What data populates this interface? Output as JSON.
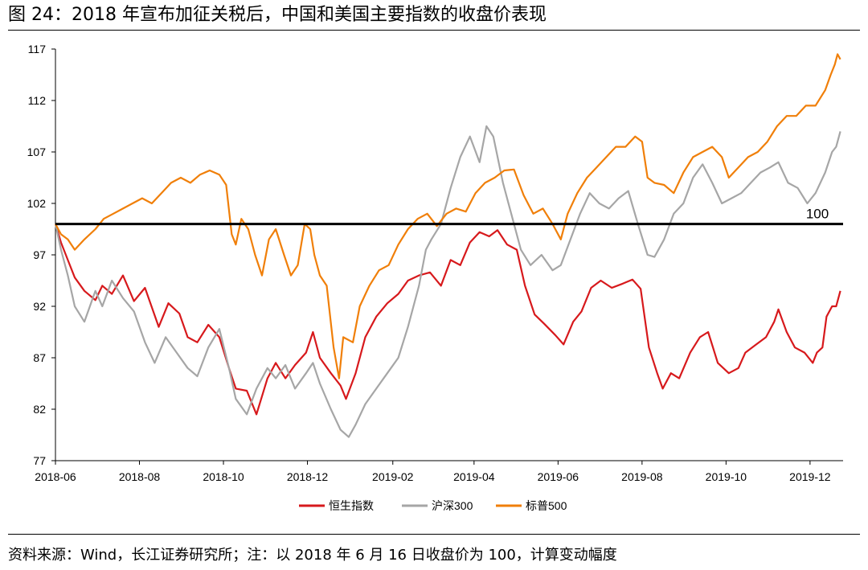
{
  "figure": {
    "title": "图 24：2018 年宣布加征关税后，中国和美国主要指数的收盘价表现",
    "source": "资料来源：Wind，长江证券研究所；注：以 2018 年 6 月 16 日收盘价为 100，计算变动幅度"
  },
  "chart_data": {
    "type": "line",
    "x_type": "date",
    "ylim": [
      77,
      117
    ],
    "yticks": [
      "117",
      "112",
      "107",
      "102",
      "97",
      "92",
      "87",
      "82",
      "77"
    ],
    "xlim": [
      "2018-06-01",
      "2019-12-25"
    ],
    "xticks": [
      "2018-06",
      "2018-08",
      "2018-10",
      "2018-12",
      "2019-02",
      "2019-04",
      "2019-06",
      "2019-08",
      "2019-10",
      "2019-12"
    ],
    "grid": false,
    "legend_position": "bottom-center",
    "reference_line": {
      "y": 100,
      "label": "100",
      "color": "#000000"
    },
    "series": [
      {
        "name": "恒生指数",
        "color": "#d7191c",
        "points": [
          [
            "2018-06-01",
            100.0
          ],
          [
            "2018-06-05",
            98.2
          ],
          [
            "2018-06-10",
            96.5
          ],
          [
            "2018-06-15",
            94.8
          ],
          [
            "2018-06-22",
            93.5
          ],
          [
            "2018-06-30",
            92.6
          ],
          [
            "2018-07-05",
            94.0
          ],
          [
            "2018-07-12",
            93.2
          ],
          [
            "2018-07-20",
            95.0
          ],
          [
            "2018-07-28",
            92.5
          ],
          [
            "2018-08-05",
            93.8
          ],
          [
            "2018-08-15",
            90.0
          ],
          [
            "2018-08-22",
            92.3
          ],
          [
            "2018-08-30",
            91.3
          ],
          [
            "2018-09-05",
            89.0
          ],
          [
            "2018-09-12",
            88.5
          ],
          [
            "2018-09-20",
            90.2
          ],
          [
            "2018-09-28",
            89.0
          ],
          [
            "2018-10-05",
            86.0
          ],
          [
            "2018-10-10",
            84.0
          ],
          [
            "2018-10-18",
            83.8
          ],
          [
            "2018-10-25",
            81.5
          ],
          [
            "2018-11-02",
            85.0
          ],
          [
            "2018-11-08",
            86.5
          ],
          [
            "2018-11-15",
            85.0
          ],
          [
            "2018-11-22",
            86.3
          ],
          [
            "2018-11-30",
            87.5
          ],
          [
            "2018-12-05",
            89.5
          ],
          [
            "2018-12-10",
            87.0
          ],
          [
            "2018-12-18",
            85.5
          ],
          [
            "2018-12-25",
            84.3
          ],
          [
            "2018-12-29",
            83.0
          ],
          [
            "2019-01-05",
            85.5
          ],
          [
            "2019-01-12",
            89.0
          ],
          [
            "2019-01-20",
            91.0
          ],
          [
            "2019-01-28",
            92.3
          ],
          [
            "2019-02-05",
            93.2
          ],
          [
            "2019-02-12",
            94.5
          ],
          [
            "2019-02-20",
            95.0
          ],
          [
            "2019-02-28",
            95.3
          ],
          [
            "2019-03-08",
            94.0
          ],
          [
            "2019-03-15",
            96.5
          ],
          [
            "2019-03-22",
            96.0
          ],
          [
            "2019-03-29",
            98.2
          ],
          [
            "2019-04-05",
            99.2
          ],
          [
            "2019-04-12",
            98.8
          ],
          [
            "2019-04-18",
            99.4
          ],
          [
            "2019-04-25",
            98.0
          ],
          [
            "2019-05-02",
            97.5
          ],
          [
            "2019-05-08",
            94.0
          ],
          [
            "2019-05-15",
            91.2
          ],
          [
            "2019-05-22",
            90.3
          ],
          [
            "2019-05-30",
            89.2
          ],
          [
            "2019-06-05",
            88.3
          ],
          [
            "2019-06-12",
            90.5
          ],
          [
            "2019-06-18",
            91.5
          ],
          [
            "2019-06-25",
            93.8
          ],
          [
            "2019-07-02",
            94.5
          ],
          [
            "2019-07-10",
            93.8
          ],
          [
            "2019-07-18",
            94.2
          ],
          [
            "2019-07-25",
            94.6
          ],
          [
            "2019-07-31",
            93.7
          ],
          [
            "2019-08-06",
            88.0
          ],
          [
            "2019-08-12",
            85.5
          ],
          [
            "2019-08-16",
            84.0
          ],
          [
            "2019-08-22",
            85.5
          ],
          [
            "2019-08-28",
            85.0
          ],
          [
            "2019-09-05",
            87.5
          ],
          [
            "2019-09-12",
            89.0
          ],
          [
            "2019-09-18",
            89.5
          ],
          [
            "2019-09-25",
            86.5
          ],
          [
            "2019-10-03",
            85.5
          ],
          [
            "2019-10-10",
            86.0
          ],
          [
            "2019-10-15",
            87.5
          ],
          [
            "2019-10-22",
            88.2
          ],
          [
            "2019-10-30",
            89.0
          ],
          [
            "2019-11-05",
            90.5
          ],
          [
            "2019-11-08",
            91.7
          ],
          [
            "2019-11-14",
            89.5
          ],
          [
            "2019-11-20",
            88.0
          ],
          [
            "2019-11-27",
            87.5
          ],
          [
            "2019-12-03",
            86.5
          ],
          [
            "2019-12-06",
            87.5
          ],
          [
            "2019-12-10",
            88.0
          ],
          [
            "2019-12-13",
            91.0
          ],
          [
            "2019-12-17",
            92.0
          ],
          [
            "2019-12-20",
            92.0
          ],
          [
            "2019-12-23",
            93.5
          ]
        ]
      },
      {
        "name": "沪深300",
        "color": "#a6a6a6",
        "points": [
          [
            "2018-06-01",
            100.0
          ],
          [
            "2018-06-05",
            97.5
          ],
          [
            "2018-06-10",
            95.0
          ],
          [
            "2018-06-15",
            92.0
          ],
          [
            "2018-06-22",
            90.5
          ],
          [
            "2018-06-30",
            93.5
          ],
          [
            "2018-07-05",
            92.0
          ],
          [
            "2018-07-12",
            94.5
          ],
          [
            "2018-07-20",
            92.8
          ],
          [
            "2018-07-28",
            91.5
          ],
          [
            "2018-08-05",
            88.5
          ],
          [
            "2018-08-12",
            86.5
          ],
          [
            "2018-08-20",
            89.0
          ],
          [
            "2018-08-28",
            87.5
          ],
          [
            "2018-09-05",
            86.0
          ],
          [
            "2018-09-12",
            85.2
          ],
          [
            "2018-09-20",
            88.0
          ],
          [
            "2018-09-28",
            89.8
          ],
          [
            "2018-10-05",
            86.0
          ],
          [
            "2018-10-10",
            83.0
          ],
          [
            "2018-10-18",
            81.5
          ],
          [
            "2018-10-25",
            84.0
          ],
          [
            "2018-11-02",
            86.0
          ],
          [
            "2018-11-08",
            85.0
          ],
          [
            "2018-11-15",
            86.3
          ],
          [
            "2018-11-22",
            84.0
          ],
          [
            "2018-11-30",
            85.5
          ],
          [
            "2018-12-05",
            86.5
          ],
          [
            "2018-12-10",
            84.5
          ],
          [
            "2018-12-18",
            82.0
          ],
          [
            "2018-12-25",
            80.0
          ],
          [
            "2018-12-31",
            79.3
          ],
          [
            "2019-01-05",
            80.5
          ],
          [
            "2019-01-12",
            82.5
          ],
          [
            "2019-01-20",
            84.0
          ],
          [
            "2019-01-28",
            85.5
          ],
          [
            "2019-02-05",
            87.0
          ],
          [
            "2019-02-12",
            90.0
          ],
          [
            "2019-02-20",
            94.0
          ],
          [
            "2019-02-25",
            97.5
          ],
          [
            "2019-03-01",
            98.5
          ],
          [
            "2019-03-08",
            100.0
          ],
          [
            "2019-03-15",
            103.5
          ],
          [
            "2019-03-22",
            106.5
          ],
          [
            "2019-03-29",
            108.5
          ],
          [
            "2019-04-05",
            106.0
          ],
          [
            "2019-04-10",
            109.5
          ],
          [
            "2019-04-15",
            108.5
          ],
          [
            "2019-04-22",
            104.0
          ],
          [
            "2019-04-28",
            101.0
          ],
          [
            "2019-05-05",
            97.5
          ],
          [
            "2019-05-12",
            96.0
          ],
          [
            "2019-05-20",
            97.0
          ],
          [
            "2019-05-28",
            95.5
          ],
          [
            "2019-06-03",
            96.0
          ],
          [
            "2019-06-10",
            98.5
          ],
          [
            "2019-06-17",
            101.0
          ],
          [
            "2019-06-24",
            103.0
          ],
          [
            "2019-07-01",
            102.0
          ],
          [
            "2019-07-08",
            101.5
          ],
          [
            "2019-07-15",
            102.5
          ],
          [
            "2019-07-22",
            103.2
          ],
          [
            "2019-07-29",
            100.0
          ],
          [
            "2019-08-05",
            97.0
          ],
          [
            "2019-08-10",
            96.8
          ],
          [
            "2019-08-17",
            98.5
          ],
          [
            "2019-08-24",
            101.0
          ],
          [
            "2019-08-31",
            102.0
          ],
          [
            "2019-09-07",
            104.5
          ],
          [
            "2019-09-14",
            105.8
          ],
          [
            "2019-09-21",
            104.0
          ],
          [
            "2019-09-28",
            102.0
          ],
          [
            "2019-10-05",
            102.5
          ],
          [
            "2019-10-12",
            103.0
          ],
          [
            "2019-10-19",
            104.0
          ],
          [
            "2019-10-26",
            105.0
          ],
          [
            "2019-11-02",
            105.5
          ],
          [
            "2019-11-08",
            106.0
          ],
          [
            "2019-11-15",
            104.0
          ],
          [
            "2019-11-22",
            103.5
          ],
          [
            "2019-11-29",
            102.0
          ],
          [
            "2019-12-05",
            103.0
          ],
          [
            "2019-12-12",
            105.0
          ],
          [
            "2019-12-17",
            107.0
          ],
          [
            "2019-12-20",
            107.5
          ],
          [
            "2019-12-23",
            109.0
          ]
        ]
      },
      {
        "name": "标普500",
        "color": "#f07f09",
        "points": [
          [
            "2018-06-01",
            100.0
          ],
          [
            "2018-06-05",
            99.0
          ],
          [
            "2018-06-10",
            98.5
          ],
          [
            "2018-06-15",
            97.5
          ],
          [
            "2018-06-22",
            98.5
          ],
          [
            "2018-06-30",
            99.5
          ],
          [
            "2018-07-06",
            100.5
          ],
          [
            "2018-07-13",
            101.0
          ],
          [
            "2018-07-20",
            101.5
          ],
          [
            "2018-07-27",
            102.0
          ],
          [
            "2018-08-03",
            102.5
          ],
          [
            "2018-08-10",
            102.0
          ],
          [
            "2018-08-17",
            103.0
          ],
          [
            "2018-08-24",
            104.0
          ],
          [
            "2018-08-31",
            104.5
          ],
          [
            "2018-09-07",
            104.0
          ],
          [
            "2018-09-14",
            104.8
          ],
          [
            "2018-09-21",
            105.2
          ],
          [
            "2018-09-28",
            104.8
          ],
          [
            "2018-10-03",
            103.8
          ],
          [
            "2018-10-07",
            99.0
          ],
          [
            "2018-10-10",
            98.0
          ],
          [
            "2018-10-14",
            100.5
          ],
          [
            "2018-10-19",
            99.5
          ],
          [
            "2018-10-24",
            97.0
          ],
          [
            "2018-10-29",
            95.0
          ],
          [
            "2018-11-03",
            98.5
          ],
          [
            "2018-11-08",
            99.5
          ],
          [
            "2018-11-14",
            97.0
          ],
          [
            "2018-11-19",
            95.0
          ],
          [
            "2018-11-24",
            96.0
          ],
          [
            "2018-11-29",
            100.0
          ],
          [
            "2018-12-03",
            99.5
          ],
          [
            "2018-12-06",
            97.0
          ],
          [
            "2018-12-10",
            95.0
          ],
          [
            "2018-12-15",
            94.0
          ],
          [
            "2018-12-20",
            88.0
          ],
          [
            "2018-12-24",
            85.0
          ],
          [
            "2018-12-27",
            89.0
          ],
          [
            "2019-01-03",
            88.5
          ],
          [
            "2019-01-08",
            92.0
          ],
          [
            "2019-01-15",
            94.0
          ],
          [
            "2019-01-22",
            95.5
          ],
          [
            "2019-01-29",
            96.0
          ],
          [
            "2019-02-05",
            98.0
          ],
          [
            "2019-02-12",
            99.5
          ],
          [
            "2019-02-19",
            100.5
          ],
          [
            "2019-02-26",
            101.0
          ],
          [
            "2019-03-05",
            99.8
          ],
          [
            "2019-03-12",
            101.0
          ],
          [
            "2019-03-19",
            101.5
          ],
          [
            "2019-03-26",
            101.2
          ],
          [
            "2019-04-02",
            103.0
          ],
          [
            "2019-04-09",
            104.0
          ],
          [
            "2019-04-16",
            104.5
          ],
          [
            "2019-04-23",
            105.2
          ],
          [
            "2019-04-30",
            105.3
          ],
          [
            "2019-05-07",
            102.8
          ],
          [
            "2019-05-14",
            101.0
          ],
          [
            "2019-05-21",
            101.5
          ],
          [
            "2019-05-28",
            100.0
          ],
          [
            "2019-06-03",
            98.5
          ],
          [
            "2019-06-08",
            101.0
          ],
          [
            "2019-06-15",
            103.0
          ],
          [
            "2019-06-22",
            104.5
          ],
          [
            "2019-06-29",
            105.5
          ],
          [
            "2019-07-06",
            106.5
          ],
          [
            "2019-07-13",
            107.5
          ],
          [
            "2019-07-20",
            107.5
          ],
          [
            "2019-07-27",
            108.5
          ],
          [
            "2019-08-01",
            108.0
          ],
          [
            "2019-08-05",
            104.5
          ],
          [
            "2019-08-10",
            104.0
          ],
          [
            "2019-08-17",
            103.8
          ],
          [
            "2019-08-24",
            103.0
          ],
          [
            "2019-08-31",
            105.0
          ],
          [
            "2019-09-07",
            106.5
          ],
          [
            "2019-09-14",
            107.0
          ],
          [
            "2019-09-21",
            107.5
          ],
          [
            "2019-09-28",
            106.5
          ],
          [
            "2019-10-03",
            104.5
          ],
          [
            "2019-10-10",
            105.5
          ],
          [
            "2019-10-17",
            106.5
          ],
          [
            "2019-10-24",
            107.0
          ],
          [
            "2019-10-31",
            108.0
          ],
          [
            "2019-11-07",
            109.5
          ],
          [
            "2019-11-14",
            110.5
          ],
          [
            "2019-11-21",
            110.5
          ],
          [
            "2019-11-28",
            111.5
          ],
          [
            "2019-12-05",
            111.5
          ],
          [
            "2019-12-12",
            113.0
          ],
          [
            "2019-12-16",
            114.5
          ],
          [
            "2019-12-19",
            115.5
          ],
          [
            "2019-12-21",
            116.5
          ],
          [
            "2019-12-23",
            116.0
          ]
        ]
      }
    ]
  }
}
